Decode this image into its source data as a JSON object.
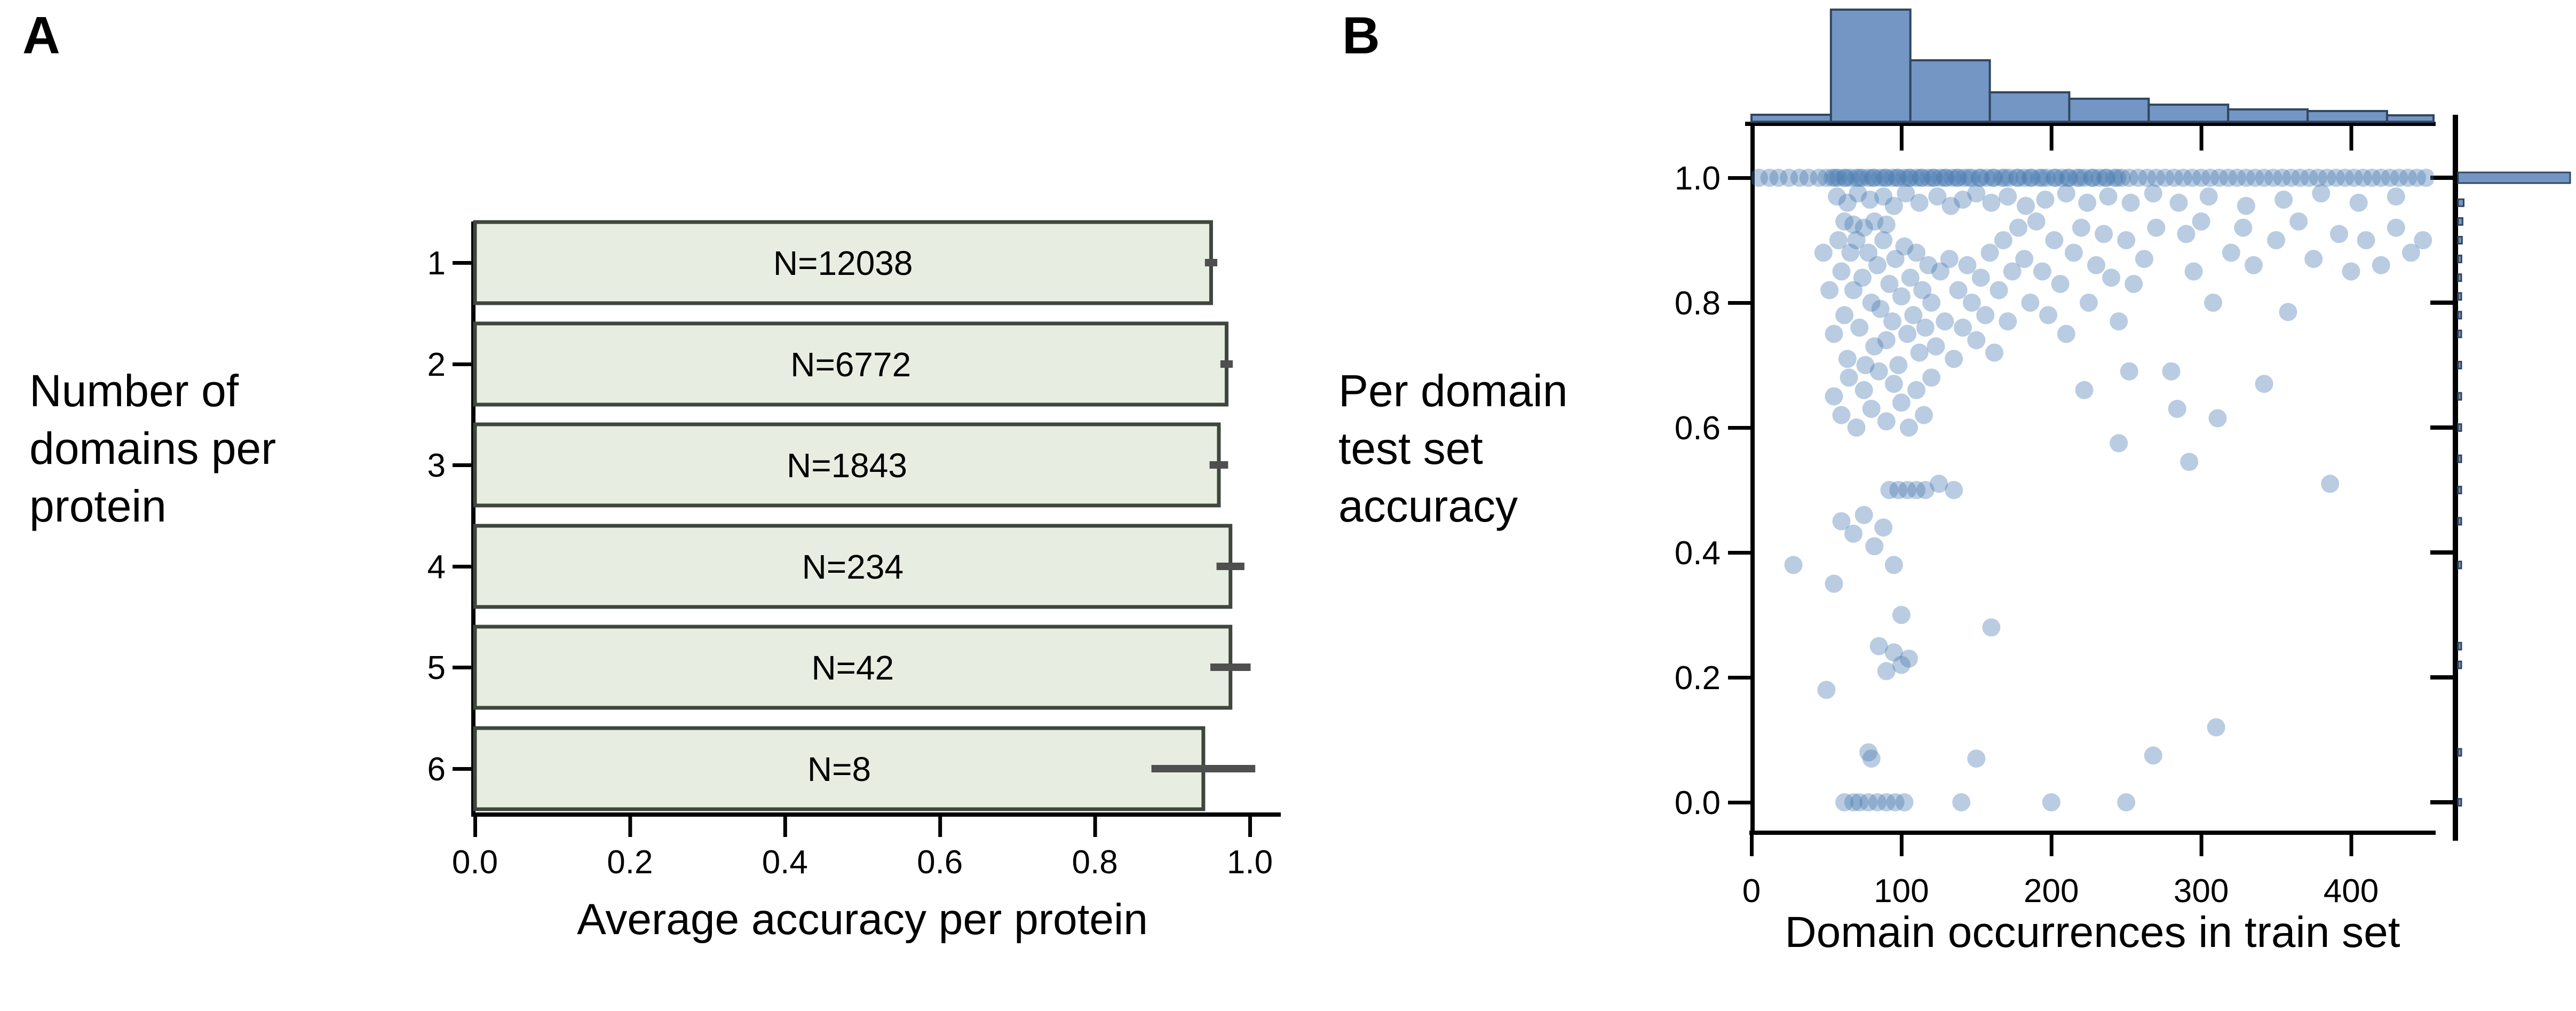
{
  "panels": {
    "a": {
      "label": "A",
      "side_text": [
        "Number of",
        "domains per",
        "protein"
      ],
      "x_axis_label": "Average accuracy per protein"
    },
    "b": {
      "label": "B",
      "side_text": [
        "Per domain",
        "test set",
        "accuracy"
      ],
      "x_axis_label": "Domain occurrences in train set"
    }
  },
  "colors": {
    "background": "#ffffff",
    "bar_fill": "#e7eee1",
    "bar_edge": "#3e463e",
    "error_bar": "#4f4f4f",
    "axis": "#000000",
    "hist_fill": "#7396c4",
    "hist_edge": "#31465e",
    "scatter_fill": "#4878b0",
    "scatter_opacity": 0.38,
    "text": "#000000"
  },
  "chart_data": [
    {
      "type": "bar",
      "panel": "A",
      "orientation": "horizontal",
      "categories": [
        "1",
        "2",
        "3",
        "4",
        "5",
        "6"
      ],
      "values": [
        0.95,
        0.97,
        0.96,
        0.975,
        0.975,
        0.94
      ],
      "errors": [
        0.008,
        0.008,
        0.012,
        0.018,
        0.026,
        0.067
      ],
      "bar_labels": [
        "N=12038",
        "N=6772",
        "N=1843",
        "N=234",
        "N=42",
        "N=8"
      ],
      "xlabel": "Average accuracy per protein",
      "ylabel": "Number of domains per protein",
      "xlim": [
        0.0,
        1.05
      ],
      "grid": false,
      "xticks": {
        "values": [
          0,
          0.2,
          0.4,
          0.6,
          0.8,
          1.0
        ],
        "labels": [
          "0.0",
          "0.2",
          "0.4",
          "0.6",
          "0.8",
          "1.0"
        ]
      }
    },
    {
      "type": "scatter",
      "panel": "B",
      "xlabel": "Domain occurrences in train set",
      "ylabel": "Per domain test set accuracy",
      "xlim": [
        0,
        455
      ],
      "ylim": [
        -0.05,
        1.09
      ],
      "grid": false,
      "xticks": {
        "values": [
          0,
          100,
          200,
          300,
          400
        ],
        "labels": [
          "0",
          "100",
          "200",
          "300",
          "400"
        ]
      },
      "yticks": {
        "values": [
          1.0,
          0.8,
          0.6,
          0.4,
          0.2,
          0.0
        ],
        "labels": [
          "1.0",
          "0.8",
          "0.6",
          "0.4",
          "0.2",
          "0.0"
        ]
      },
      "top_histogram": {
        "bin_edges": [
          0,
          53,
          106,
          159,
          212,
          265,
          318,
          371,
          424,
          455
        ],
        "rel_heights": [
          0.062,
          1.0,
          0.548,
          0.262,
          0.205,
          0.152,
          0.11,
          0.095,
          0.057
        ]
      },
      "right_histogram": {
        "bins": [
          [
            1.0,
            1.0
          ],
          [
            0.96,
            0.05
          ],
          [
            0.93,
            0.04
          ],
          [
            0.9,
            0.035
          ],
          [
            0.87,
            0.03
          ],
          [
            0.84,
            0.025
          ],
          [
            0.81,
            0.022
          ],
          [
            0.78,
            0.02
          ],
          [
            0.75,
            0.018
          ],
          [
            0.7,
            0.015
          ],
          [
            0.65,
            0.013
          ],
          [
            0.6,
            0.012
          ],
          [
            0.55,
            0.01
          ],
          [
            0.5,
            0.012
          ],
          [
            0.45,
            0.01
          ],
          [
            0.38,
            0.01
          ],
          [
            0.25,
            0.008
          ],
          [
            0.22,
            0.008
          ],
          [
            0.08,
            0.006
          ],
          [
            0.0,
            0.012
          ]
        ]
      },
      "points": [
        [
          5,
          1
        ],
        [
          12,
          1
        ],
        [
          18,
          1
        ],
        [
          25,
          1
        ],
        [
          32,
          1
        ],
        [
          38,
          1
        ],
        [
          45,
          1
        ],
        [
          50,
          1
        ],
        [
          54,
          1
        ],
        [
          56,
          1
        ],
        [
          58,
          1
        ],
        [
          62,
          1
        ],
        [
          63,
          1
        ],
        [
          66,
          1
        ],
        [
          70,
          1
        ],
        [
          72,
          1
        ],
        [
          74,
          1
        ],
        [
          78,
          1
        ],
        [
          81,
          1
        ],
        [
          82,
          1
        ],
        [
          86,
          1
        ],
        [
          89,
          1
        ],
        [
          90,
          1
        ],
        [
          94,
          1
        ],
        [
          97,
          1
        ],
        [
          98,
          1
        ],
        [
          102,
          1
        ],
        [
          105,
          1
        ],
        [
          106,
          1
        ],
        [
          110,
          1
        ],
        [
          113,
          1
        ],
        [
          114,
          1
        ],
        [
          118,
          1
        ],
        [
          121,
          1
        ],
        [
          122,
          1
        ],
        [
          126,
          1
        ],
        [
          129,
          1
        ],
        [
          130,
          1
        ],
        [
          134,
          1
        ],
        [
          137,
          1
        ],
        [
          138,
          1
        ],
        [
          142,
          1
        ],
        [
          145,
          1
        ],
        [
          147,
          1
        ],
        [
          152,
          1
        ],
        [
          153,
          1
        ],
        [
          157,
          1
        ],
        [
          161,
          1
        ],
        [
          162,
          1
        ],
        [
          167,
          1
        ],
        [
          169,
          1
        ],
        [
          172,
          1
        ],
        [
          177,
          1
        ],
        [
          178,
          1
        ],
        [
          182,
          1
        ],
        [
          186,
          1
        ],
        [
          187,
          1
        ],
        [
          192,
          1
        ],
        [
          194,
          1
        ],
        [
          197,
          1
        ],
        [
          202,
          1
        ],
        [
          203,
          1
        ],
        [
          207,
          1
        ],
        [
          211,
          1
        ],
        [
          212,
          1
        ],
        [
          217,
          1
        ],
        [
          219,
          1
        ],
        [
          222,
          1
        ],
        [
          227,
          1
        ],
        [
          228,
          1
        ],
        [
          232,
          1
        ],
        [
          236,
          1
        ],
        [
          237,
          1
        ],
        [
          242,
          1
        ],
        [
          244,
          1
        ],
        [
          247,
          1
        ],
        [
          252,
          1
        ],
        [
          258,
          1
        ],
        [
          264,
          1
        ],
        [
          270,
          1
        ],
        [
          276,
          1
        ],
        [
          282,
          1
        ],
        [
          288,
          1
        ],
        [
          294,
          1
        ],
        [
          300,
          1
        ],
        [
          306,
          1
        ],
        [
          312,
          1
        ],
        [
          318,
          1
        ],
        [
          324,
          1
        ],
        [
          330,
          1
        ],
        [
          336,
          1
        ],
        [
          342,
          1
        ],
        [
          348,
          1
        ],
        [
          354,
          1
        ],
        [
          360,
          1
        ],
        [
          366,
          1
        ],
        [
          372,
          1
        ],
        [
          378,
          1
        ],
        [
          384,
          1
        ],
        [
          390,
          1
        ],
        [
          396,
          1
        ],
        [
          402,
          1
        ],
        [
          408,
          1
        ],
        [
          414,
          1
        ],
        [
          420,
          1
        ],
        [
          426,
          1
        ],
        [
          432,
          1
        ],
        [
          438,
          1
        ],
        [
          444,
          1
        ],
        [
          450,
          1
        ],
        [
          57,
          0.97
        ],
        [
          64,
          0.96
        ],
        [
          71,
          0.975
        ],
        [
          79,
          0.965
        ],
        [
          88,
          0.97
        ],
        [
          95,
          0.955
        ],
        [
          103,
          0.975
        ],
        [
          112,
          0.96
        ],
        [
          124,
          0.97
        ],
        [
          133,
          0.955
        ],
        [
          141,
          0.965
        ],
        [
          150,
          0.975
        ],
        [
          160,
          0.96
        ],
        [
          171,
          0.97
        ],
        [
          183,
          0.955
        ],
        [
          196,
          0.965
        ],
        [
          210,
          0.975
        ],
        [
          224,
          0.96
        ],
        [
          238,
          0.97
        ],
        [
          253,
          0.96
        ],
        [
          268,
          0.975
        ],
        [
          285,
          0.96
        ],
        [
          305,
          0.97
        ],
        [
          330,
          0.955
        ],
        [
          355,
          0.965
        ],
        [
          380,
          0.975
        ],
        [
          405,
          0.96
        ],
        [
          430,
          0.97
        ],
        [
          62,
          0.93
        ],
        [
          68,
          0.925
        ],
        [
          75,
          0.92
        ],
        [
          82,
          0.93
        ],
        [
          90,
          0.925
        ],
        [
          48,
          0.88
        ],
        [
          52,
          0.82
        ],
        [
          55,
          0.75
        ],
        [
          58,
          0.9
        ],
        [
          60,
          0.85
        ],
        [
          62,
          0.78
        ],
        [
          64,
          0.71
        ],
        [
          66,
          0.88
        ],
        [
          68,
          0.82
        ],
        [
          70,
          0.9
        ],
        [
          72,
          0.76
        ],
        [
          74,
          0.84
        ],
        [
          76,
          0.7
        ],
        [
          78,
          0.88
        ],
        [
          80,
          0.8
        ],
        [
          82,
          0.73
        ],
        [
          84,
          0.86
        ],
        [
          86,
          0.79
        ],
        [
          88,
          0.9
        ],
        [
          90,
          0.74
        ],
        [
          92,
          0.83
        ],
        [
          94,
          0.77
        ],
        [
          96,
          0.87
        ],
        [
          98,
          0.7
        ],
        [
          100,
          0.81
        ],
        [
          102,
          0.89
        ],
        [
          104,
          0.75
        ],
        [
          106,
          0.84
        ],
        [
          108,
          0.78
        ],
        [
          110,
          0.88
        ],
        [
          112,
          0.72
        ],
        [
          114,
          0.82
        ],
        [
          116,
          0.76
        ],
        [
          118,
          0.86
        ],
        [
          120,
          0.8
        ],
        [
          123,
          0.73
        ],
        [
          126,
          0.85
        ],
        [
          129,
          0.77
        ],
        [
          132,
          0.87
        ],
        [
          135,
          0.71
        ],
        [
          138,
          0.82
        ],
        [
          141,
          0.76
        ],
        [
          144,
          0.86
        ],
        [
          147,
          0.8
        ],
        [
          150,
          0.74
        ],
        [
          153,
          0.84
        ],
        [
          156,
          0.78
        ],
        [
          159,
          0.88
        ],
        [
          162,
          0.72
        ],
        [
          165,
          0.82
        ],
        [
          168,
          0.9
        ],
        [
          171,
          0.77
        ],
        [
          174,
          0.85
        ],
        [
          55,
          0.65
        ],
        [
          60,
          0.62
        ],
        [
          65,
          0.68
        ],
        [
          70,
          0.6
        ],
        [
          75,
          0.66
        ],
        [
          80,
          0.63
        ],
        [
          85,
          0.69
        ],
        [
          90,
          0.61
        ],
        [
          95,
          0.67
        ],
        [
          100,
          0.64
        ],
        [
          105,
          0.6
        ],
        [
          110,
          0.66
        ],
        [
          115,
          0.62
        ],
        [
          120,
          0.68
        ],
        [
          178,
          0.92
        ],
        [
          182,
          0.87
        ],
        [
          186,
          0.8
        ],
        [
          190,
          0.93
        ],
        [
          194,
          0.85
        ],
        [
          198,
          0.78
        ],
        [
          202,
          0.9
        ],
        [
          206,
          0.83
        ],
        [
          210,
          0.75
        ],
        [
          215,
          0.88
        ],
        [
          220,
          0.92
        ],
        [
          225,
          0.8
        ],
        [
          230,
          0.86
        ],
        [
          235,
          0.91
        ],
        [
          240,
          0.84
        ],
        [
          245,
          0.77
        ],
        [
          250,
          0.9
        ],
        [
          255,
          0.83
        ],
        [
          222,
          0.66
        ],
        [
          245,
          0.575
        ],
        [
          252,
          0.69
        ],
        [
          262,
          0.87
        ],
        [
          270,
          0.92
        ],
        [
          280,
          0.69
        ],
        [
          284,
          0.63
        ],
        [
          290,
          0.91
        ],
        [
          295,
          0.85
        ],
        [
          300,
          0.93
        ],
        [
          308,
          0.8
        ],
        [
          311,
          0.615
        ],
        [
          320,
          0.88
        ],
        [
          328,
          0.92
        ],
        [
          335,
          0.86
        ],
        [
          342,
          0.67
        ],
        [
          350,
          0.9
        ],
        [
          358,
          0.785
        ],
        [
          365,
          0.93
        ],
        [
          375,
          0.87
        ],
        [
          386,
          0.51
        ],
        [
          392,
          0.91
        ],
        [
          400,
          0.85
        ],
        [
          410,
          0.9
        ],
        [
          420,
          0.86
        ],
        [
          430,
          0.92
        ],
        [
          440,
          0.88
        ],
        [
          448,
          0.9
        ],
        [
          92,
          0.5
        ],
        [
          98,
          0.5
        ],
        [
          104,
          0.5
        ],
        [
          110,
          0.5
        ],
        [
          116,
          0.5
        ],
        [
          125,
          0.51
        ],
        [
          135,
          0.5
        ],
        [
          292,
          0.545
        ],
        [
          28,
          0.38
        ],
        [
          95,
          0.38
        ],
        [
          60,
          0.45
        ],
        [
          68,
          0.43
        ],
        [
          75,
          0.46
        ],
        [
          82,
          0.41
        ],
        [
          88,
          0.44
        ],
        [
          55,
          0.35
        ],
        [
          100,
          0.3
        ],
        [
          160,
          0.28
        ],
        [
          85,
          0.25
        ],
        [
          95,
          0.24
        ],
        [
          100,
          0.22
        ],
        [
          90,
          0.21
        ],
        [
          105,
          0.23
        ],
        [
          50,
          0.18
        ],
        [
          78,
          0.08
        ],
        [
          80,
          0.07
        ],
        [
          150,
          0.07
        ],
        [
          268,
          0.075
        ],
        [
          310,
          0.12
        ],
        [
          62,
          0
        ],
        [
          68,
          0
        ],
        [
          72,
          0
        ],
        [
          78,
          0
        ],
        [
          84,
          0
        ],
        [
          90,
          0
        ],
        [
          96,
          0
        ],
        [
          102,
          0
        ],
        [
          140,
          0
        ],
        [
          200,
          0
        ],
        [
          250,
          0
        ]
      ]
    }
  ]
}
